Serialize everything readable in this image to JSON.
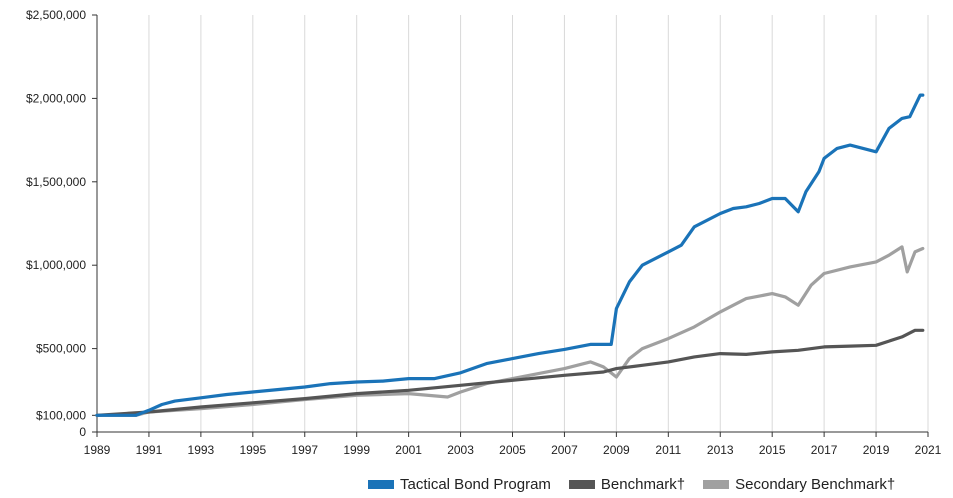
{
  "chart_data": {
    "type": "line",
    "title": "",
    "xlabel": "",
    "ylabel": "",
    "xlim": [
      1989,
      2021
    ],
    "ylim": [
      0,
      2500000
    ],
    "y_ticks": [
      {
        "value": 0,
        "label": "0"
      },
      {
        "value": 500000,
        "label": "$500,000"
      },
      {
        "value": 1000000,
        "label": "$1,000,000"
      },
      {
        "value": 1500000,
        "label": "$1,500,000"
      },
      {
        "value": 2000000,
        "label": "$2,000,000"
      },
      {
        "value": 2500000,
        "label": "$2,500,000"
      }
    ],
    "y_extra_label": {
      "value": 100000,
      "label": "$100,000"
    },
    "x_ticks": [
      "1989",
      "1991",
      "1993",
      "1995",
      "1997",
      "1999",
      "2001",
      "2003",
      "2005",
      "2007",
      "2009",
      "2011",
      "2013",
      "2015",
      "2017",
      "2019",
      "2021"
    ],
    "grid": "vertical",
    "legend_position": "bottom-right",
    "series": [
      {
        "name": "Tactical Bond Program",
        "color": "#1a73b8",
        "x": [
          1989.0,
          1990.5,
          1991.0,
          1991.5,
          1992.0,
          1993.0,
          1994.0,
          1995.0,
          1996.0,
          1997.0,
          1998.0,
          1999.0,
          2000.0,
          2001.0,
          2002.0,
          2003.0,
          2004.0,
          2005.0,
          2006.0,
          2007.0,
          2008.0,
          2008.8,
          2009.0,
          2009.5,
          2010.0,
          2011.0,
          2011.5,
          2012.0,
          2013.0,
          2013.5,
          2014.0,
          2014.5,
          2015.0,
          2015.5,
          2016.0,
          2016.3,
          2016.8,
          2017.0,
          2017.5,
          2018.0,
          2018.5,
          2019.0,
          2019.5,
          2020.0,
          2020.3,
          2020.7,
          2020.8
        ],
        "values": [
          100000,
          100000,
          130000,
          165000,
          185000,
          205000,
          225000,
          240000,
          255000,
          270000,
          290000,
          300000,
          305000,
          320000,
          320000,
          355000,
          410000,
          440000,
          470000,
          495000,
          525000,
          525000,
          740000,
          900000,
          1000000,
          1080000,
          1120000,
          1230000,
          1310000,
          1340000,
          1350000,
          1370000,
          1400000,
          1400000,
          1320000,
          1440000,
          1560000,
          1640000,
          1700000,
          1720000,
          1700000,
          1680000,
          1820000,
          1880000,
          1890000,
          2020000,
          2020000
        ]
      },
      {
        "name": "Benchmark†",
        "color": "#555555",
        "x": [
          1989.0,
          1991.0,
          1993.0,
          1995.0,
          1997.0,
          1999.0,
          2001.0,
          2003.0,
          2005.0,
          2007.0,
          2008.5,
          2009.0,
          2010.0,
          2011.0,
          2012.0,
          2013.0,
          2014.0,
          2015.0,
          2016.0,
          2017.0,
          2018.0,
          2019.0,
          2019.5,
          2020.0,
          2020.5,
          2020.8
        ],
        "values": [
          100000,
          120000,
          150000,
          175000,
          200000,
          230000,
          250000,
          280000,
          310000,
          340000,
          360000,
          380000,
          400000,
          420000,
          450000,
          470000,
          465000,
          480000,
          490000,
          510000,
          515000,
          520000,
          545000,
          570000,
          610000,
          610000
        ]
      },
      {
        "name": "Secondary Benchmark†",
        "color": "#a0a0a0",
        "x": [
          1989.0,
          1990.5,
          1991.0,
          1993.0,
          1995.0,
          1997.0,
          1999.0,
          2001.0,
          2002.5,
          2003.0,
          2004.0,
          2005.0,
          2006.0,
          2007.0,
          2008.0,
          2008.5,
          2009.0,
          2009.5,
          2010.0,
          2011.0,
          2012.0,
          2013.0,
          2014.0,
          2015.0,
          2015.5,
          2016.0,
          2016.5,
          2017.0,
          2018.0,
          2019.0,
          2019.5,
          2020.0,
          2020.2,
          2020.5,
          2020.8
        ],
        "values": [
          100000,
          100000,
          120000,
          140000,
          165000,
          195000,
          220000,
          230000,
          210000,
          240000,
          290000,
          320000,
          350000,
          380000,
          420000,
          390000,
          330000,
          440000,
          500000,
          560000,
          630000,
          720000,
          800000,
          830000,
          810000,
          760000,
          880000,
          950000,
          990000,
          1020000,
          1060000,
          1110000,
          960000,
          1080000,
          1100000
        ]
      }
    ]
  }
}
